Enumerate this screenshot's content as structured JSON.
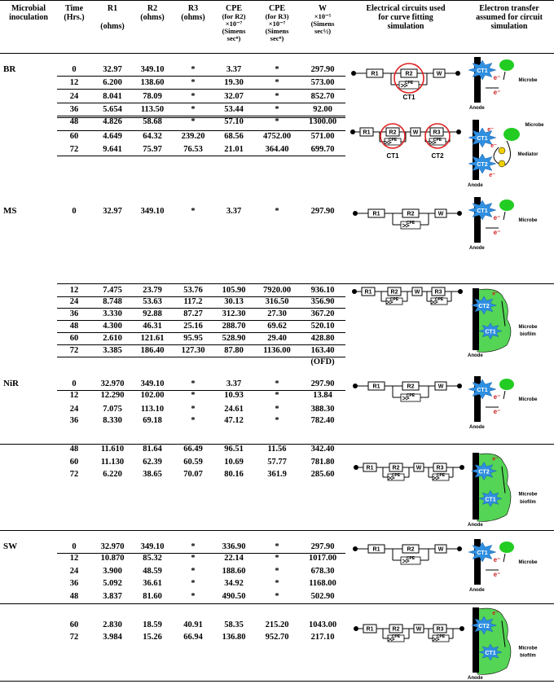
{
  "headers": {
    "inoculation": [
      "Microbial",
      "inoculation"
    ],
    "time": [
      "Time",
      "(Hrs.)"
    ],
    "r1": [
      "R1",
      "(ohms)"
    ],
    "r2": [
      "R2",
      "(ohms)"
    ],
    "r3": [
      "R3",
      "(ohms)"
    ],
    "cpe2": [
      "CPE",
      "(for R2)",
      "×10⁻⁷",
      "(Simens",
      "secⁿ)"
    ],
    "cpe3": [
      "CPE",
      "(for R3)",
      "×10⁻⁷",
      "(Simens",
      "secⁿ)"
    ],
    "w": [
      "W",
      "×10⁻⁵",
      "(Simens",
      "sec½)"
    ],
    "circuits": [
      "Electrical circuits used",
      "for curve fitting",
      "simulation"
    ],
    "transfer": [
      "Electron transfer",
      "assumed for circuit",
      "simulation"
    ]
  },
  "groups": [
    {
      "name": "BR",
      "rows": [
        {
          "time": "0",
          "r1": "32.97",
          "r2": "349.10",
          "r3": "*",
          "cpe2": "3.37",
          "cpe3": "*",
          "w": "297.90"
        },
        {
          "time": "12",
          "r1": "6.200",
          "r2": "138.60",
          "r3": "*",
          "cpe2": "19.30",
          "cpe3": "*",
          "w": "573.00"
        },
        {
          "time": "24",
          "r1": "8.041",
          "r2": "78.09",
          "r3": "*",
          "cpe2": "32.07",
          "cpe3": "*",
          "w": "852.70"
        },
        {
          "time": "36",
          "r1": "5.654",
          "r2": "113.50",
          "r3": "*",
          "cpe2": "53.44",
          "cpe3": "*",
          "w": "92.00"
        },
        {
          "time": "48",
          "r1": "4.826",
          "r2": "58.68",
          "r3": "*",
          "cpe2": "57.10",
          "cpe3": "*",
          "w": "1300.00"
        },
        {
          "time": "60",
          "r1": "4.649",
          "r2": "64.32",
          "r3": "239.20",
          "cpe2": "68.56",
          "cpe3": "4752.00",
          "w": "571.00"
        },
        {
          "time": "72",
          "r1": "9.641",
          "r2": "75.97",
          "r3": "76.53",
          "cpe2": "21.01",
          "cpe3": "364.40",
          "w": "699.70"
        }
      ]
    },
    {
      "name": "MS",
      "rows": [
        {
          "time": "0",
          "r1": "32.97",
          "r2": "349.10",
          "r3": "*",
          "cpe2": "3.37",
          "cpe3": "*",
          "w": "297.90"
        },
        {
          "time": "12",
          "r1": "7.475",
          "r2": "23.79",
          "r3": "53.76",
          "cpe2": "105.90",
          "cpe3": "7920.00",
          "w": "936.10"
        },
        {
          "time": "24",
          "r1": "8.748",
          "r2": "53.63",
          "r3": "117.2",
          "cpe2": "30.13",
          "cpe3": "316.50",
          "w": "356.90"
        },
        {
          "time": "36",
          "r1": "3.330",
          "r2": "92.88",
          "r3": "87.27",
          "cpe2": "312.30",
          "cpe3": "27.30",
          "w": "367.20"
        },
        {
          "time": "48",
          "r1": "4.300",
          "r2": "46.31",
          "r3": "25.16",
          "cpe2": "288.70",
          "cpe3": "69.62",
          "w": "520.10"
        },
        {
          "time": "60",
          "r1": "2.610",
          "r2": "121.61",
          "r3": "95.95",
          "cpe2": "528.90",
          "cpe3": "29.40",
          "w": "428.80"
        },
        {
          "time": "72",
          "r1": "3.385",
          "r2": "186.40",
          "r3": "127.30",
          "cpe2": "87.80",
          "cpe3": "1136.00",
          "w": "163.40"
        }
      ],
      "note": "(OFD)"
    },
    {
      "name": "NiR",
      "rows": [
        {
          "time": "0",
          "r1": "32.970",
          "r2": "349.10",
          "r3": "*",
          "cpe2": "3.37",
          "cpe3": "*",
          "w": "297.90"
        },
        {
          "time": "12",
          "r1": "12.290",
          "r2": "102.00",
          "r3": "*",
          "cpe2": "10.93",
          "cpe3": "*",
          "w": "13.84"
        },
        {
          "time": "24",
          "r1": "7.075",
          "r2": "113.10",
          "r3": "*",
          "cpe2": "24.61",
          "cpe3": "*",
          "w": "388.30"
        },
        {
          "time": "36",
          "r1": "8.330",
          "r2": "69.18",
          "r3": "*",
          "cpe2": "47.12",
          "cpe3": "*",
          "w": "782.40"
        },
        {
          "time": "48",
          "r1": "11.610",
          "r2": "81.64",
          "r3": "66.49",
          "cpe2": "96.51",
          "cpe3": "11.56",
          "w": "342.40"
        },
        {
          "time": "60",
          "r1": "11.130",
          "r2": "62.39",
          "r3": "60.59",
          "cpe2": "10.69",
          "cpe3": "57.77",
          "w": "781.80"
        },
        {
          "time": "72",
          "r1": "6.220",
          "r2": "38.65",
          "r3": "70.07",
          "cpe2": "80.16",
          "cpe3": "361.9",
          "w": "285.60"
        }
      ]
    },
    {
      "name": "SW",
      "rows": [
        {
          "time": "0",
          "r1": "32.970",
          "r2": "349.10",
          "r3": "*",
          "cpe2": "336.90",
          "cpe3": "*",
          "w": "297.90"
        },
        {
          "time": "12",
          "r1": "10.870",
          "r2": "85.32",
          "r3": "*",
          "cpe2": "22.14",
          "cpe3": "*",
          "w": "1017.00"
        },
        {
          "time": "24",
          "r1": "3.900",
          "r2": "48.59",
          "r3": "*",
          "cpe2": "188.60",
          "cpe3": "*",
          "w": "678.30"
        },
        {
          "time": "36",
          "r1": "5.092",
          "r2": "36.61",
          "r3": "*",
          "cpe2": "34.92",
          "cpe3": "*",
          "w": "1168.00"
        },
        {
          "time": "48",
          "r1": "3.837",
          "r2": "81.60",
          "r3": "*",
          "cpe2": "490.50",
          "cpe3": "*",
          "w": "502.90"
        },
        {
          "time": "60",
          "r1": "2.830",
          "r2": "18.59",
          "r3": "40.91",
          "cpe2": "58.35",
          "cpe3": "215.20",
          "w": "1043.00"
        },
        {
          "time": "72",
          "r1": "3.984",
          "r2": "15.26",
          "r3": "66.94",
          "cpe2": "136.80",
          "cpe3": "952.70",
          "w": "217.10"
        }
      ]
    }
  ],
  "circuit_labels": {
    "r1": "R1",
    "r2": "R2",
    "r3": "R3",
    "w": "W",
    "cpe": "CPE",
    "ct1": "CT1",
    "ct2": "CT2"
  },
  "transfer_labels": {
    "microbe": "Microbe",
    "mediator": "Mediator",
    "biofilm": "Microbe biofilm",
    "anode": "Anode",
    "electron": "e⁻"
  },
  "colors": {
    "highlight": "#e02020",
    "microbe": "#22cc22",
    "biofilm": "#55d555",
    "electron": "#2f8fe0",
    "mediator": "#f0d000"
  }
}
